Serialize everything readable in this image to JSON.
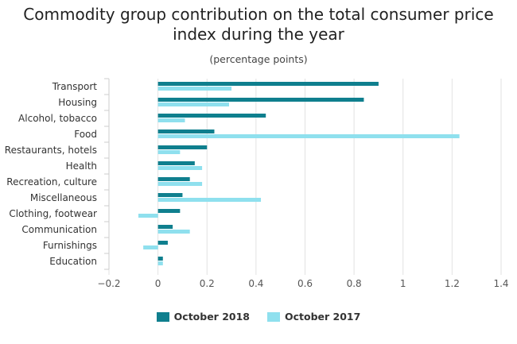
{
  "chart_data": {
    "type": "bar",
    "orientation": "horizontal",
    "title": "Commodity group contribution on the total consumer price index during the year",
    "title_lines": [
      "Commodity group contribution on the total consumer price",
      "index during the year"
    ],
    "subtitle": "(percentage points)",
    "xlabel": "",
    "ylabel": "",
    "xlim": [
      -0.2,
      1.4
    ],
    "xticks": [
      -0.2,
      0,
      0.2,
      0.4,
      0.6,
      0.8,
      1,
      1.2,
      1.4
    ],
    "xtick_labels": [
      "−0.2",
      "0",
      "0.2",
      "0.4",
      "0.6",
      "0.8",
      "1",
      "1.2",
      "1.4"
    ],
    "grid": "vertical",
    "legend_position": "bottom",
    "categories": [
      "Transport",
      "Housing",
      "Alcohol, tobacco",
      "Food",
      "Restaurants, hotels",
      "Health",
      "Recreation, culture",
      "Miscellaneous",
      "Clothing, footwear",
      "Communication",
      "Furnishings",
      "Education"
    ],
    "series": [
      {
        "name": "October 2018",
        "color": "#0f7f8e",
        "values": [
          0.9,
          0.84,
          0.44,
          0.23,
          0.2,
          0.15,
          0.13,
          0.1,
          0.09,
          0.06,
          0.04,
          0.02
        ]
      },
      {
        "name": "October 2017",
        "color": "#8fe0ee",
        "values": [
          0.3,
          0.29,
          0.11,
          1.23,
          0.09,
          0.18,
          0.18,
          0.42,
          -0.08,
          0.13,
          -0.06,
          0.02
        ]
      }
    ]
  }
}
